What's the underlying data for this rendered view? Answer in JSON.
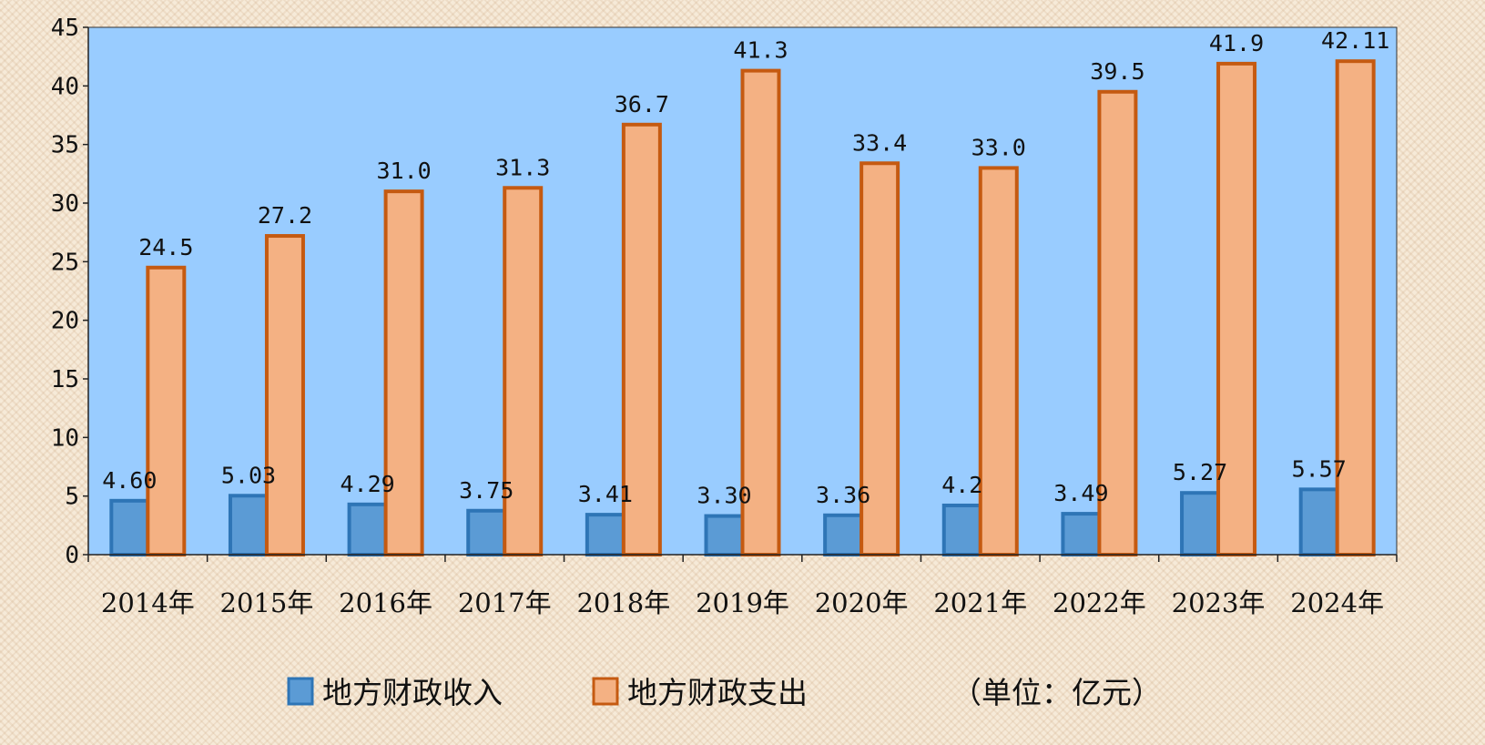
{
  "chart_data": {
    "type": "bar",
    "categories": [
      "2014年",
      "2015年",
      "2016年",
      "2017年",
      "2018年",
      "2019年",
      "2020年",
      "2021年",
      "2022年",
      "2023年",
      "2024年"
    ],
    "series": [
      {
        "name": "地方财政收入",
        "values": [
          4.6,
          5.03,
          4.29,
          3.75,
          3.41,
          3.3,
          3.36,
          4.2,
          3.49,
          5.27,
          5.57
        ],
        "labels": [
          "4.60",
          "5.03",
          "4.29",
          "3.75",
          "3.41",
          "3.30",
          "3.36",
          "4.2",
          "3.49",
          "5.27",
          "5.57"
        ],
        "fill": "#5b9bd5",
        "stroke": "#2e75b6"
      },
      {
        "name": "地方财政支出",
        "values": [
          24.5,
          27.2,
          31.0,
          31.3,
          36.7,
          41.3,
          33.4,
          33.0,
          39.5,
          41.9,
          42.11
        ],
        "labels": [
          "24.5",
          "27.2",
          "31.0",
          "31.3",
          "36.7",
          "41.3",
          "33.4",
          "33.0",
          "39.5",
          "41.9",
          "42.11"
        ],
        "fill": "#f4b183",
        "stroke": "#c55a11"
      }
    ],
    "ylim": [
      0,
      45
    ],
    "yticks": [
      "0",
      "5",
      "10",
      "15",
      "20",
      "25",
      "30",
      "35",
      "40",
      "45"
    ],
    "unit_note": "（单位：亿元）",
    "legend_position": "bottom",
    "plot_background": "#99ccff",
    "grid": false
  }
}
